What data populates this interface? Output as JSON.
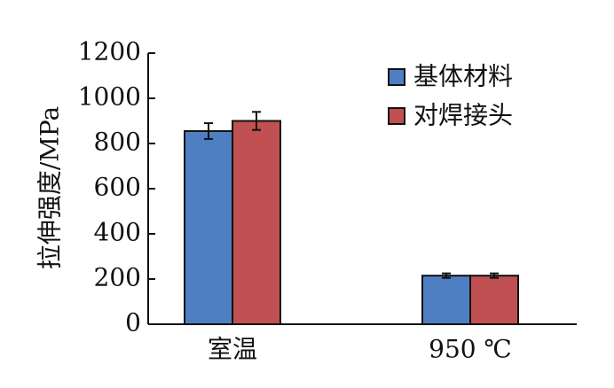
{
  "chart_data": {
    "type": "bar",
    "ylabel": "拉伸强度/MPa",
    "xlabel": "",
    "ylim": [
      0,
      1200
    ],
    "yticks": [
      0,
      200,
      400,
      600,
      800,
      1000,
      1200
    ],
    "categories": [
      "室温",
      "950 ℃"
    ],
    "series": [
      {
        "name": "基体材料",
        "color": "#4f7fc3",
        "values": [
          855,
          215
        ],
        "errors": [
          35,
          10
        ]
      },
      {
        "name": "对焊接头",
        "color": "#c05052",
        "values": [
          900,
          215
        ],
        "errors": [
          40,
          10
        ]
      }
    ],
    "legend_position": "top-right",
    "grid": false
  }
}
